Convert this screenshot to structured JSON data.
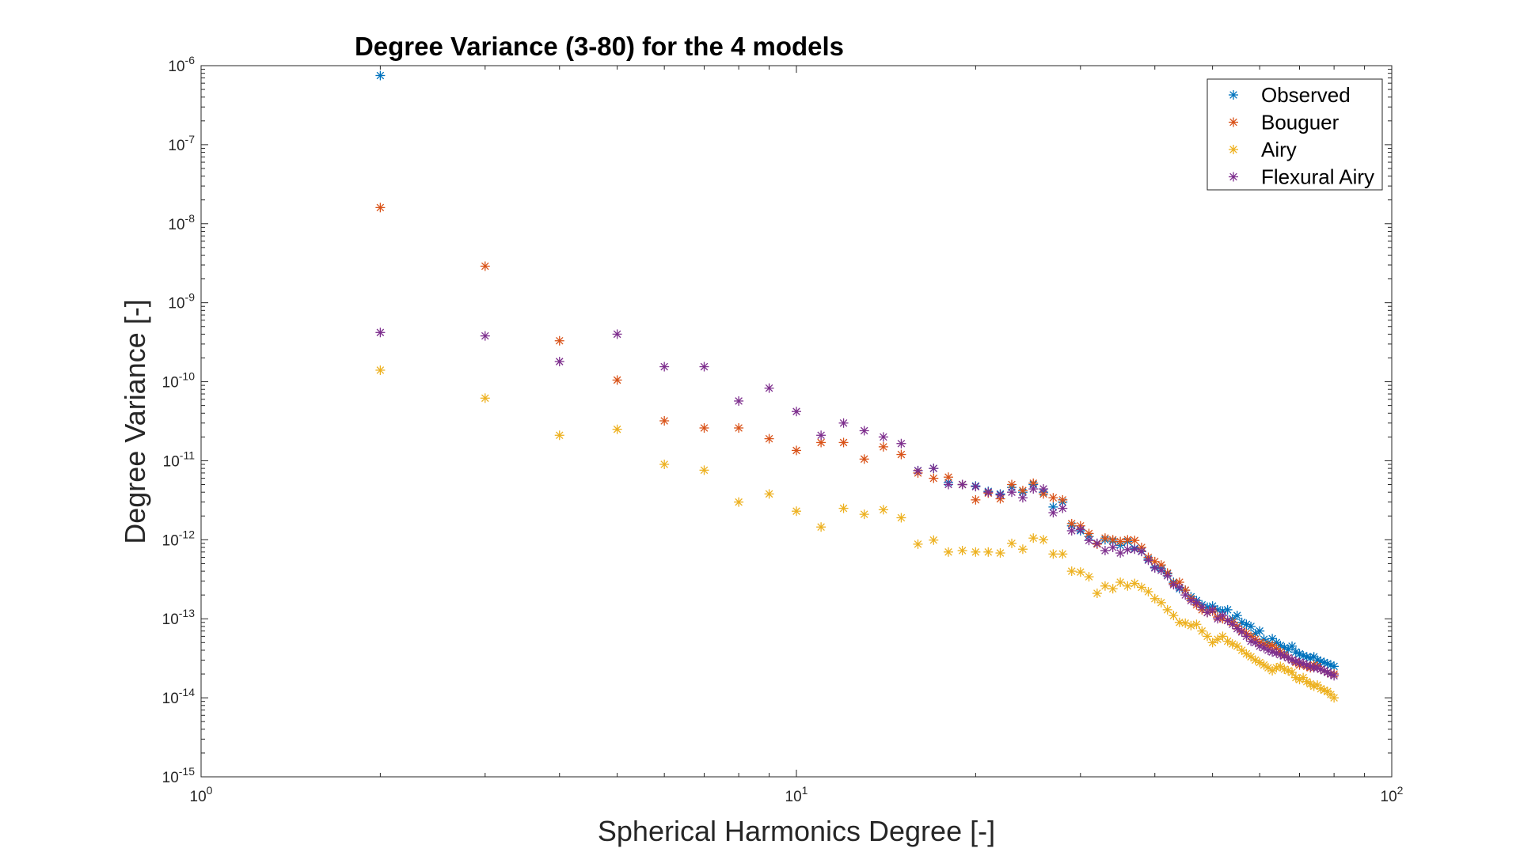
{
  "chart_data": {
    "type": "scatter",
    "title": "Degree Variance (3-80) for the 4 models",
    "xlabel": "Spherical Harmonics Degree [-]",
    "ylabel": "Degree Variance [-]",
    "xscale": "log",
    "yscale": "log",
    "xlim": [
      1,
      100
    ],
    "ylim": [
      1e-15,
      1e-06
    ],
    "x_ticks": [
      {
        "base": "10",
        "exp": "0",
        "value": 1
      },
      {
        "base": "10",
        "exp": "1",
        "value": 10
      },
      {
        "base": "10",
        "exp": "2",
        "value": 100
      }
    ],
    "y_ticks": [
      {
        "base": "10",
        "exp": "-6",
        "value": 1e-06
      },
      {
        "base": "10",
        "exp": "-7",
        "value": 1e-07
      },
      {
        "base": "10",
        "exp": "-8",
        "value": 1e-08
      },
      {
        "base": "10",
        "exp": "-9",
        "value": 1e-09
      },
      {
        "base": "10",
        "exp": "-10",
        "value": 1e-10
      },
      {
        "base": "10",
        "exp": "-11",
        "value": 1e-11
      },
      {
        "base": "10",
        "exp": "-12",
        "value": 1e-12
      },
      {
        "base": "10",
        "exp": "-13",
        "value": 1e-13
      },
      {
        "base": "10",
        "exp": "-14",
        "value": 1e-14
      },
      {
        "base": "10",
        "exp": "-15",
        "value": 1e-15
      }
    ],
    "marker": "asterisk",
    "grid": false,
    "legend_position": "top-right",
    "series": [
      {
        "name": "Observed",
        "color": "#0072BD",
        "x": [
          2,
          16,
          17,
          18,
          19,
          20,
          21,
          22,
          23,
          24,
          25,
          26,
          27,
          28,
          29,
          30,
          31,
          32,
          33,
          34,
          35,
          36,
          37,
          38,
          39,
          40,
          41,
          42,
          43,
          44,
          45,
          46,
          47,
          48,
          49,
          50,
          51,
          52,
          53,
          54,
          55,
          56,
          57,
          58,
          59,
          60,
          61,
          62,
          63,
          64,
          65,
          66,
          67,
          68,
          69,
          70,
          71,
          72,
          73,
          74,
          75,
          76,
          77,
          78,
          79,
          80
        ],
        "y": [
          7.5e-07,
          7.5e-12,
          8e-12,
          5.3e-12,
          5e-12,
          4.8e-12,
          4.1e-12,
          3.8e-12,
          4.6e-12,
          4e-12,
          5e-12,
          4e-12,
          2.6e-12,
          3e-12,
          1.5e-12,
          1.3e-12,
          1.1e-12,
          9e-13,
          1e-12,
          9.6e-13,
          8.5e-13,
          9.5e-13,
          7.8e-13,
          7.2e-13,
          5.7e-13,
          4.5e-13,
          4.3e-13,
          3.7e-13,
          2.9e-13,
          2.4e-13,
          2.3e-13,
          1.9e-13,
          1.7e-13,
          1.5e-13,
          1.4e-13,
          1.45e-13,
          1.3e-13,
          1.25e-13,
          1.3e-13,
          1e-13,
          1.1e-13,
          9e-14,
          8.5e-14,
          8e-14,
          6.5e-14,
          7e-14,
          5.5e-14,
          5e-14,
          5.6e-14,
          5e-14,
          4.6e-14,
          4.3e-14,
          4.1e-14,
          4.5e-14,
          3.8e-14,
          3.6e-14,
          3.4e-14,
          3.3e-14,
          3.2e-14,
          3.3e-14,
          3e-14,
          2.9e-14,
          2.8e-14,
          2.7e-14,
          2.6e-14,
          2.5e-14
        ]
      },
      {
        "name": "Bouguer",
        "color": "#D95319",
        "x": [
          2,
          3,
          4,
          5,
          6,
          7,
          8,
          9,
          10,
          11,
          12,
          13,
          14,
          15,
          16,
          17,
          18,
          19,
          20,
          21,
          22,
          23,
          24,
          25,
          26,
          27,
          28,
          29,
          30,
          31,
          32,
          33,
          34,
          35,
          36,
          37,
          38,
          39,
          40,
          41,
          42,
          43,
          44,
          45,
          46,
          47,
          48,
          49,
          50,
          51,
          52,
          53,
          54,
          55,
          56,
          57,
          58,
          59,
          60,
          61,
          62,
          63,
          64,
          65,
          66,
          67,
          68,
          69,
          70,
          71,
          72,
          73,
          74,
          75,
          76,
          77,
          78,
          79,
          80
        ],
        "y": [
          1.6e-08,
          2.9e-09,
          3.3e-10,
          1.05e-10,
          3.2e-11,
          2.6e-11,
          2.6e-11,
          1.9e-11,
          1.35e-11,
          1.7e-11,
          1.7e-11,
          1.05e-11,
          1.5e-11,
          1.2e-11,
          7e-12,
          6e-12,
          6.2e-12,
          5e-12,
          3.2e-12,
          3.9e-12,
          3.3e-12,
          5e-12,
          4.2e-12,
          5.2e-12,
          3.8e-12,
          3.4e-12,
          3.2e-12,
          1.6e-12,
          1.5e-12,
          1.2e-12,
          8.8e-13,
          1.05e-12,
          1e-12,
          9.5e-13,
          1e-12,
          9.8e-13,
          8e-13,
          6e-13,
          5.3e-13,
          4.8e-13,
          3.8e-13,
          2.8e-13,
          2.9e-13,
          2.3e-13,
          1.8e-13,
          1.5e-13,
          1.3e-13,
          1.2e-13,
          1.25e-13,
          1.05e-13,
          1e-13,
          9.5e-14,
          9e-14,
          8e-14,
          7e-14,
          6.5e-14,
          6e-14,
          5.5e-14,
          5e-14,
          4.8e-14,
          4.5e-14,
          4.6e-14,
          4.2e-14,
          3.8e-14,
          3.5e-14,
          3.2e-14,
          3e-14,
          2.8e-14,
          2.6e-14,
          2.7e-14,
          2.5e-14,
          2.4e-14,
          2.6e-14,
          2.5e-14,
          2.3e-14,
          2.2e-14,
          2.1e-14,
          2e-14,
          2e-14
        ]
      },
      {
        "name": "Airy",
        "color": "#EDB120",
        "x": [
          2,
          3,
          4,
          5,
          6,
          7,
          8,
          9,
          10,
          11,
          12,
          13,
          14,
          15,
          16,
          17,
          18,
          19,
          20,
          21,
          22,
          23,
          24,
          25,
          26,
          27,
          28,
          29,
          30,
          31,
          32,
          33,
          34,
          35,
          36,
          37,
          38,
          39,
          40,
          41,
          42,
          43,
          44,
          45,
          46,
          47,
          48,
          49,
          50,
          51,
          52,
          53,
          54,
          55,
          56,
          57,
          58,
          59,
          60,
          61,
          62,
          63,
          64,
          65,
          66,
          67,
          68,
          69,
          70,
          71,
          72,
          73,
          74,
          75,
          76,
          77,
          78,
          79,
          80
        ],
        "y": [
          1.4e-10,
          6.2e-11,
          2.1e-11,
          2.5e-11,
          9e-12,
          7.6e-12,
          3e-12,
          3.8e-12,
          2.3e-12,
          1.45e-12,
          2.5e-12,
          2.1e-12,
          2.4e-12,
          1.9e-12,
          8.8e-13,
          9.9e-13,
          7e-13,
          7.3e-13,
          7e-13,
          7e-13,
          6.8e-13,
          9e-13,
          7.6e-13,
          1.05e-12,
          1e-12,
          6.6e-13,
          6.6e-13,
          4e-13,
          3.9e-13,
          3.4e-13,
          2.1e-13,
          2.6e-13,
          2.4e-13,
          2.9e-13,
          2.6e-13,
          2.8e-13,
          2.5e-13,
          2.2e-13,
          1.8e-13,
          1.6e-13,
          1.3e-13,
          1.1e-13,
          9e-14,
          8.8e-14,
          8.2e-14,
          8.5e-14,
          7e-14,
          6e-14,
          5e-14,
          5.5e-14,
          6e-14,
          5.2e-14,
          4.8e-14,
          4.5e-14,
          4e-14,
          3.6e-14,
          3.3e-14,
          3e-14,
          2.8e-14,
          2.6e-14,
          2.4e-14,
          2.2e-14,
          2.4e-14,
          2.5e-14,
          2.3e-14,
          2.2e-14,
          2.1e-14,
          1.8e-14,
          1.7e-14,
          1.8e-14,
          1.6e-14,
          1.5e-14,
          1.4e-14,
          1.45e-14,
          1.3e-14,
          1.25e-14,
          1.2e-14,
          1.1e-14,
          1e-14
        ]
      },
      {
        "name": "Flexural Airy",
        "color": "#7E2F8E",
        "x": [
          2,
          3,
          4,
          5,
          6,
          7,
          8,
          9,
          10,
          11,
          12,
          13,
          14,
          15,
          16,
          17,
          18,
          19,
          20,
          21,
          22,
          23,
          24,
          25,
          26,
          27,
          28,
          29,
          30,
          31,
          32,
          33,
          34,
          35,
          36,
          37,
          38,
          39,
          40,
          41,
          42,
          43,
          44,
          45,
          46,
          47,
          48,
          49,
          50,
          51,
          52,
          53,
          54,
          55,
          56,
          57,
          58,
          59,
          60,
          61,
          62,
          63,
          64,
          65,
          66,
          67,
          68,
          69,
          70,
          71,
          72,
          73,
          74,
          75,
          76,
          77,
          78,
          79,
          80
        ],
        "y": [
          4.2e-10,
          3.8e-10,
          1.8e-10,
          4e-10,
          1.55e-10,
          1.55e-10,
          5.7e-11,
          8.3e-11,
          4.2e-11,
          2.1e-11,
          3e-11,
          2.4e-11,
          2e-11,
          1.65e-11,
          7.5e-12,
          8e-12,
          5e-12,
          5e-12,
          4.7e-12,
          4e-12,
          3.7e-12,
          4e-12,
          3.4e-12,
          4.4e-12,
          4.4e-12,
          2.2e-12,
          2.5e-12,
          1.3e-12,
          1.35e-12,
          9.8e-13,
          9e-13,
          7.3e-13,
          8e-13,
          6.8e-13,
          7.5e-13,
          7.6e-13,
          7.1e-13,
          5.5e-13,
          4.4e-13,
          4.1e-13,
          3.5e-13,
          2.7e-13,
          2.5e-13,
          2e-13,
          1.7e-13,
          1.6e-13,
          1.4e-13,
          1.2e-13,
          1.3e-13,
          1e-13,
          1.1e-13,
          9.5e-14,
          8.5e-14,
          7.5e-14,
          6.8e-14,
          6e-14,
          5.2e-14,
          5e-14,
          4.5e-14,
          4.3e-14,
          4e-14,
          3.8e-14,
          3.7e-14,
          3.5e-14,
          3.4e-14,
          3.2e-14,
          3e-14,
          2.9e-14,
          2.8e-14,
          2.7e-14,
          2.6e-14,
          2.5e-14,
          2.4e-14,
          2.4e-14,
          2.3e-14,
          2.2e-14,
          2.1e-14,
          2e-14,
          1.9e-14
        ]
      }
    ]
  }
}
